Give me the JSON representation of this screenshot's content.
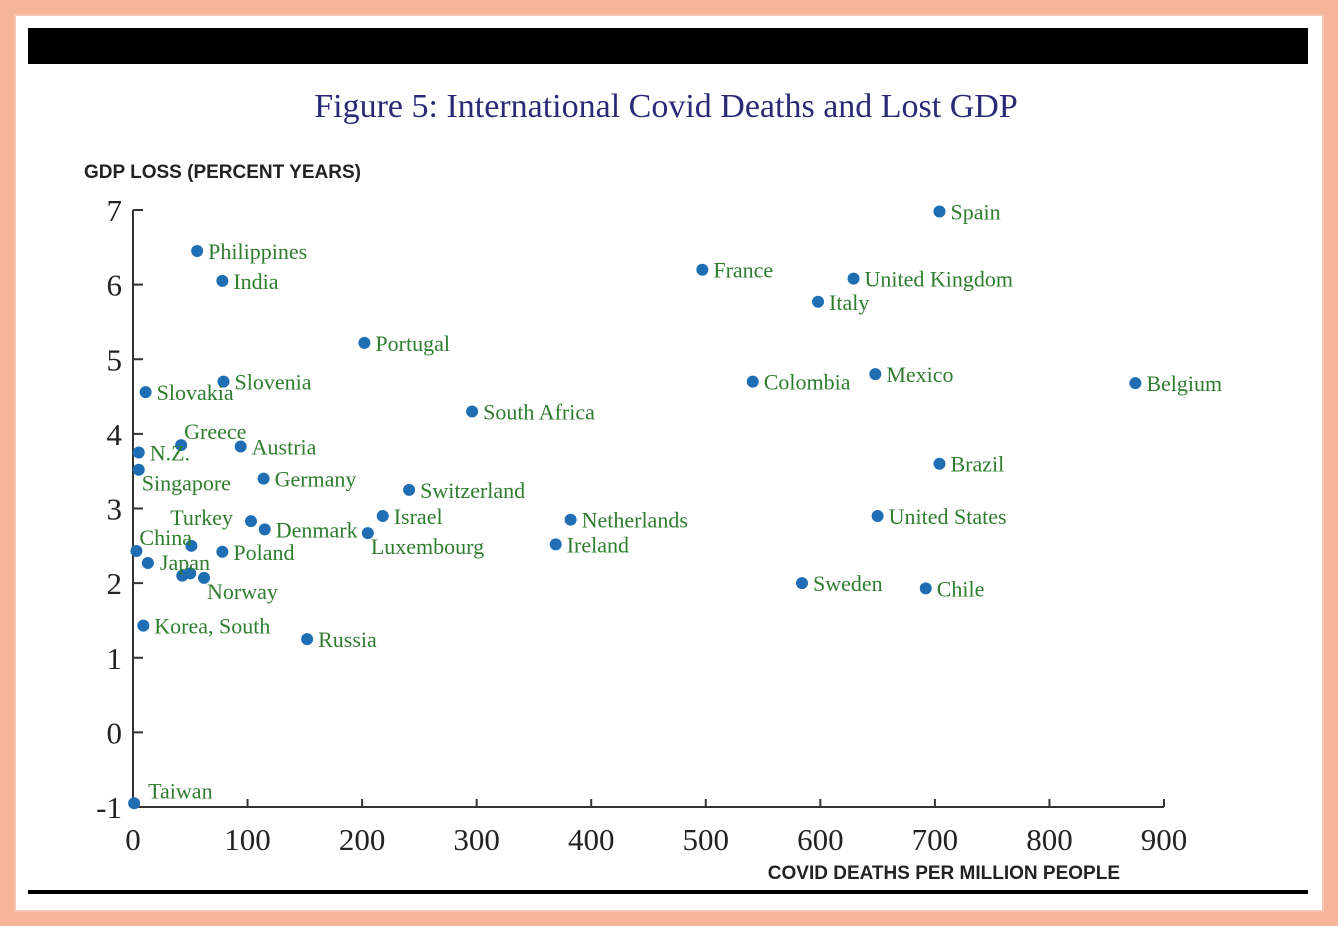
{
  "chart_data": {
    "type": "scatter",
    "title": "Figure 5: International Covid Deaths and Lost GDP",
    "xlabel": "COVID DEATHS PER MILLION PEOPLE",
    "ylabel": "GDP LOSS (PERCENT YEARS)",
    "xlim": [
      0,
      900
    ],
    "ylim": [
      -1,
      7
    ],
    "xticks": [
      "0",
      "100",
      "200",
      "300",
      "400",
      "500",
      "600",
      "700",
      "800",
      "900"
    ],
    "yticks": [
      "-1",
      "0",
      "1",
      "2",
      "3",
      "4",
      "5",
      "6",
      "7"
    ],
    "marker_color": "#1f6eb4",
    "label_color": "#2e7d2e",
    "grid": false,
    "points": [
      {
        "label": "Spain",
        "x": 704,
        "y": 6.98,
        "lp": "right"
      },
      {
        "label": "Philippines",
        "x": 56,
        "y": 6.45,
        "lp": "right"
      },
      {
        "label": "India",
        "x": 78,
        "y": 6.05,
        "lp": "right"
      },
      {
        "label": "France",
        "x": 497,
        "y": 6.2,
        "lp": "right"
      },
      {
        "label": "United Kingdom",
        "x": 629,
        "y": 6.08,
        "lp": "right"
      },
      {
        "label": "Italy",
        "x": 598,
        "y": 5.77,
        "lp": "right"
      },
      {
        "label": "Portugal",
        "x": 202,
        "y": 5.22,
        "lp": "right"
      },
      {
        "label": "Colombia",
        "x": 541,
        "y": 4.7,
        "lp": "right"
      },
      {
        "label": "Mexico",
        "x": 648,
        "y": 4.8,
        "lp": "right"
      },
      {
        "label": "Belgium",
        "x": 875,
        "y": 4.68,
        "lp": "right"
      },
      {
        "label": "Slovakia",
        "x": 11,
        "y": 4.56,
        "lp": "right"
      },
      {
        "label": "Slovenia",
        "x": 79,
        "y": 4.7,
        "lp": "right"
      },
      {
        "label": "South Africa",
        "x": 296,
        "y": 4.3,
        "lp": "right"
      },
      {
        "label": "Greece",
        "x": 42,
        "y": 3.85,
        "lp": "above"
      },
      {
        "label": "Austria",
        "x": 94,
        "y": 3.83,
        "lp": "right"
      },
      {
        "label": "N.Z.",
        "x": 5,
        "y": 3.75,
        "lp": "right"
      },
      {
        "label": "Singapore",
        "x": 5,
        "y": 3.52,
        "lp": "below"
      },
      {
        "label": "Brazil",
        "x": 704,
        "y": 3.6,
        "lp": "right"
      },
      {
        "label": "Germany",
        "x": 114,
        "y": 3.4,
        "lp": "right"
      },
      {
        "label": "Switzerland",
        "x": 241,
        "y": 3.25,
        "lp": "right"
      },
      {
        "label": "Israel",
        "x": 218,
        "y": 2.9,
        "lp": "right"
      },
      {
        "label": "Netherlands",
        "x": 382,
        "y": 2.85,
        "lp": "right"
      },
      {
        "label": "United States",
        "x": 650,
        "y": 2.9,
        "lp": "right"
      },
      {
        "label": "Turkey",
        "x": 103,
        "y": 2.83,
        "lp": "left-up"
      },
      {
        "label": "Denmark",
        "x": 115,
        "y": 2.72,
        "lp": "right"
      },
      {
        "label": "Luxembourg",
        "x": 205,
        "y": 2.67,
        "lp": "below"
      },
      {
        "label": "Ireland",
        "x": 369,
        "y": 2.52,
        "lp": "right"
      },
      {
        "label": "China",
        "x": 3,
        "y": 2.43,
        "lp": "above"
      },
      {
        "label": "Poland",
        "x": 78,
        "y": 2.42,
        "lp": "right"
      },
      {
        "label": "Japan",
        "x": 13,
        "y": 2.27,
        "lp": "right-mid"
      },
      {
        "label": "Norway",
        "x": 62,
        "y": 2.07,
        "lp": "below"
      },
      {
        "label": "Sweden",
        "x": 584,
        "y": 2.0,
        "lp": "right"
      },
      {
        "label": "Chile",
        "x": 692,
        "y": 1.93,
        "lp": "right"
      },
      {
        "label": "Korea, South",
        "x": 9,
        "y": 1.43,
        "lp": "right"
      },
      {
        "label": "Russia",
        "x": 152,
        "y": 1.25,
        "lp": "right"
      },
      {
        "label": "Taiwan",
        "x": 1,
        "y": -0.95,
        "lp": "right-up"
      }
    ],
    "extra_points": [
      {
        "x": 51,
        "y": 2.5
      },
      {
        "x": 43,
        "y": 2.1
      },
      {
        "x": 50,
        "y": 2.13
      }
    ]
  }
}
